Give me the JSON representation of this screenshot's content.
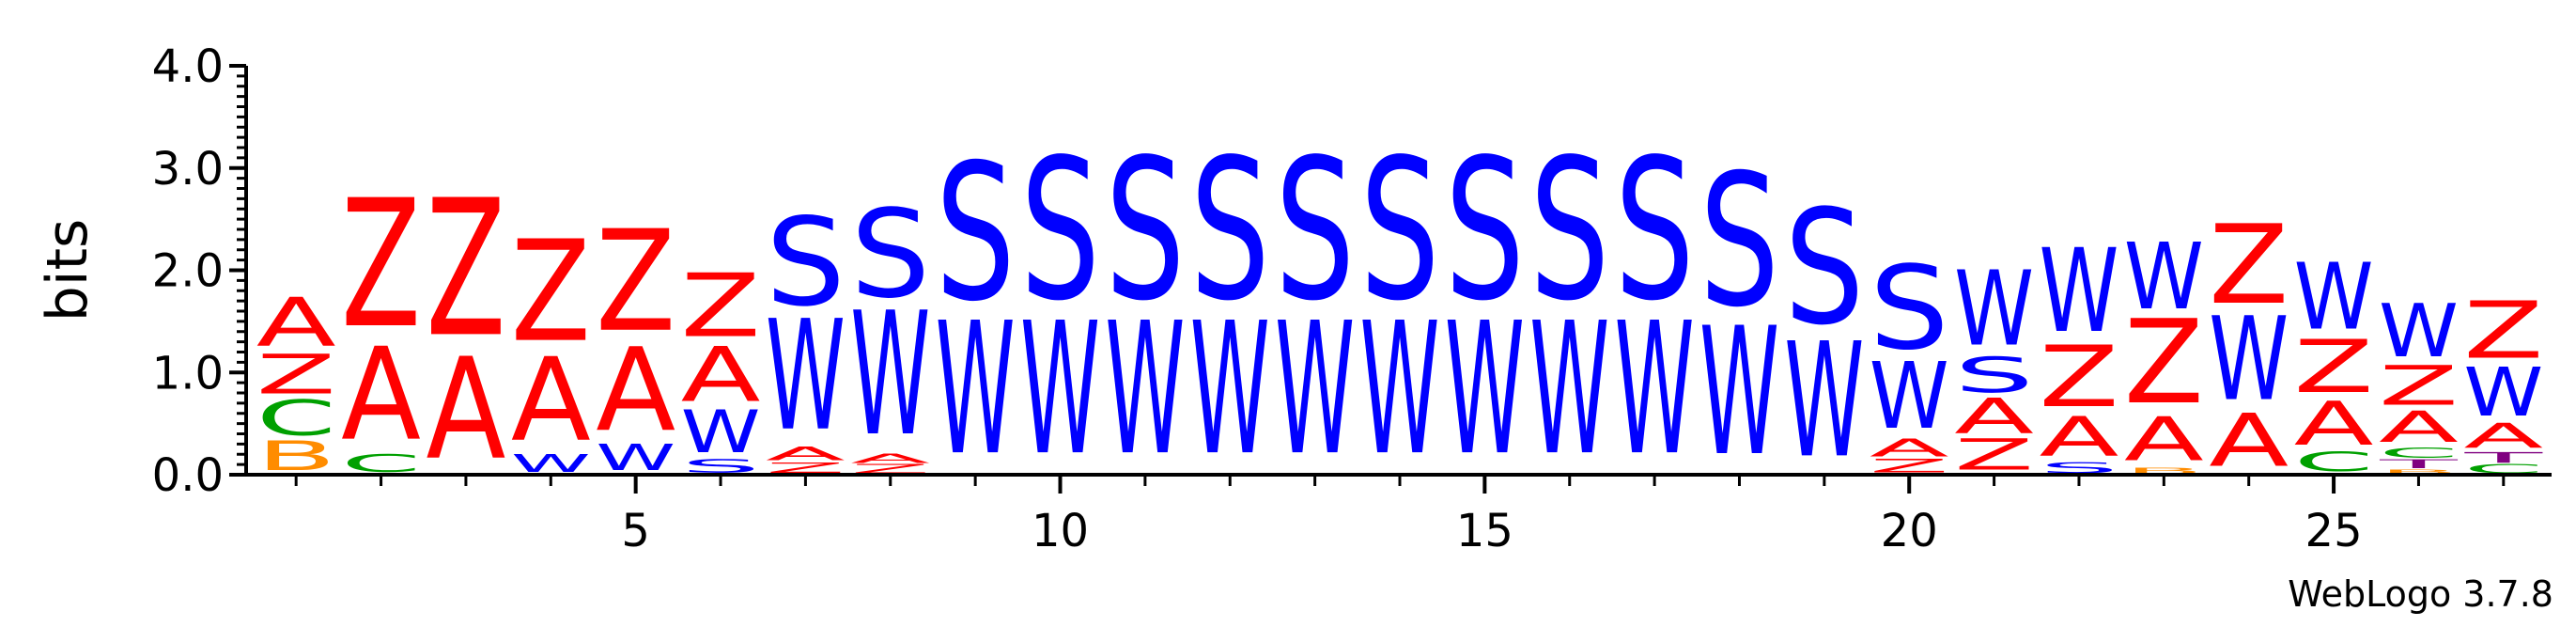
{
  "chart_data": {
    "type": "sequence-logo",
    "ylabel": "bits",
    "ylim": [
      0,
      4
    ],
    "yticks": [
      "0.0",
      "1.0",
      "2.0",
      "3.0",
      "4.0"
    ],
    "xticks": [
      5,
      10,
      15,
      20,
      25
    ],
    "positions": 27,
    "credit": "WebLogo 3.7.8",
    "colors": {
      "A": "#ff0000",
      "Z": "#ff0000",
      "S": "#0000ff",
      "W": "#0000ff",
      "C": "#00a000",
      "B": "#ff8c00",
      "T": "#800080"
    },
    "stacks": [
      {
        "position": 1,
        "letters": [
          {
            "letter": "B",
            "height": 0.33
          },
          {
            "letter": "C",
            "height": 0.4
          },
          {
            "letter": "Z",
            "height": 0.45
          },
          {
            "letter": "A",
            "height": 0.55
          }
        ]
      },
      {
        "position": 2,
        "letters": [
          {
            "letter": "C",
            "height": 0.2
          },
          {
            "letter": "A",
            "height": 1.05
          },
          {
            "letter": "Z",
            "height": 1.45
          }
        ]
      },
      {
        "position": 3,
        "letters": [
          {
            "letter": "A",
            "height": 1.15
          },
          {
            "letter": "Z",
            "height": 1.55
          }
        ]
      },
      {
        "position": 4,
        "letters": [
          {
            "letter": "W",
            "height": 0.2
          },
          {
            "letter": "A",
            "height": 0.95
          },
          {
            "letter": "Z",
            "height": 1.15
          }
        ]
      },
      {
        "position": 5,
        "letters": [
          {
            "letter": "W",
            "height": 0.3
          },
          {
            "letter": "A",
            "height": 0.95
          },
          {
            "letter": "Z",
            "height": 1.15
          }
        ]
      },
      {
        "position": 6,
        "letters": [
          {
            "letter": "S",
            "height": 0.15
          },
          {
            "letter": "W",
            "height": 0.48
          },
          {
            "letter": "A",
            "height": 0.62
          },
          {
            "letter": "Z",
            "height": 0.72
          }
        ]
      },
      {
        "position": 7,
        "letters": [
          {
            "letter": "Z",
            "height": 0.12
          },
          {
            "letter": "A",
            "height": 0.15
          },
          {
            "letter": "W",
            "height": 1.25
          },
          {
            "letter": "S",
            "height": 1.0
          }
        ]
      },
      {
        "position": 8,
        "letters": [
          {
            "letter": "Z",
            "height": 0.1
          },
          {
            "letter": "A",
            "height": 0.1
          },
          {
            "letter": "W",
            "height": 1.4
          },
          {
            "letter": "S",
            "height": 1.0
          }
        ]
      },
      {
        "position": 9,
        "letters": [
          {
            "letter": "W",
            "height": 1.5
          },
          {
            "letter": "S",
            "height": 1.55
          }
        ]
      },
      {
        "position": 10,
        "letters": [
          {
            "letter": "W",
            "height": 1.5
          },
          {
            "letter": "S",
            "height": 1.6
          }
        ]
      },
      {
        "position": 11,
        "letters": [
          {
            "letter": "W",
            "height": 1.5
          },
          {
            "letter": "S",
            "height": 1.6
          }
        ]
      },
      {
        "position": 12,
        "letters": [
          {
            "letter": "W",
            "height": 1.5
          },
          {
            "letter": "S",
            "height": 1.6
          }
        ]
      },
      {
        "position": 13,
        "letters": [
          {
            "letter": "W",
            "height": 1.5
          },
          {
            "letter": "S",
            "height": 1.6
          }
        ]
      },
      {
        "position": 14,
        "letters": [
          {
            "letter": "W",
            "height": 1.5
          },
          {
            "letter": "S",
            "height": 1.6
          }
        ]
      },
      {
        "position": 15,
        "letters": [
          {
            "letter": "W",
            "height": 1.5
          },
          {
            "letter": "S",
            "height": 1.6
          }
        ]
      },
      {
        "position": 16,
        "letters": [
          {
            "letter": "W",
            "height": 1.5
          },
          {
            "letter": "S",
            "height": 1.6
          }
        ]
      },
      {
        "position": 17,
        "letters": [
          {
            "letter": "W",
            "height": 1.5
          },
          {
            "letter": "S",
            "height": 1.6
          }
        ]
      },
      {
        "position": 18,
        "letters": [
          {
            "letter": "W",
            "height": 1.45
          },
          {
            "letter": "S",
            "height": 1.5
          }
        ]
      },
      {
        "position": 19,
        "letters": [
          {
            "letter": "W",
            "height": 1.3
          },
          {
            "letter": "S",
            "height": 1.3
          }
        ]
      },
      {
        "position": 20,
        "letters": [
          {
            "letter": "Z",
            "height": 0.15
          },
          {
            "letter": "A",
            "height": 0.2
          },
          {
            "letter": "W",
            "height": 0.75
          },
          {
            "letter": "S",
            "height": 0.95
          }
        ]
      },
      {
        "position": 21,
        "letters": [
          {
            "letter": "Z",
            "height": 0.35
          },
          {
            "letter": "A",
            "height": 0.4
          },
          {
            "letter": "S",
            "height": 0.4
          },
          {
            "letter": "W",
            "height": 0.85
          }
        ]
      },
      {
        "position": 22,
        "letters": [
          {
            "letter": "S",
            "height": 0.12
          },
          {
            "letter": "A",
            "height": 0.45
          },
          {
            "letter": "Z",
            "height": 0.7
          },
          {
            "letter": "W",
            "height": 0.95
          }
        ]
      },
      {
        "position": 23,
        "letters": [
          {
            "letter": "B",
            "height": 0.07
          },
          {
            "letter": "A",
            "height": 0.5
          },
          {
            "letter": "Z",
            "height": 0.95
          },
          {
            "letter": "W",
            "height": 0.75
          }
        ]
      },
      {
        "position": 24,
        "letters": [
          {
            "letter": "A",
            "height": 0.6
          },
          {
            "letter": "W",
            "height": 0.95
          },
          {
            "letter": "Z",
            "height": 0.9
          }
        ]
      },
      {
        "position": 25,
        "letters": [
          {
            "letter": "C",
            "height": 0.22
          },
          {
            "letter": "A",
            "height": 0.5
          },
          {
            "letter": "Z",
            "height": 0.6
          },
          {
            "letter": "W",
            "height": 0.75
          }
        ]
      },
      {
        "position": 26,
        "letters": [
          {
            "letter": "B",
            "height": 0.05
          },
          {
            "letter": "T",
            "height": 0.1
          },
          {
            "letter": "C",
            "height": 0.12
          },
          {
            "letter": "A",
            "height": 0.35
          },
          {
            "letter": "Z",
            "height": 0.45
          },
          {
            "letter": "W",
            "height": 0.6
          }
        ]
      },
      {
        "position": 27,
        "letters": [
          {
            "letter": "C",
            "height": 0.1
          },
          {
            "letter": "T",
            "height": 0.12
          },
          {
            "letter": "A",
            "height": 0.28
          },
          {
            "letter": "W",
            "height": 0.55
          },
          {
            "letter": "Z",
            "height": 0.65
          }
        ]
      }
    ]
  }
}
